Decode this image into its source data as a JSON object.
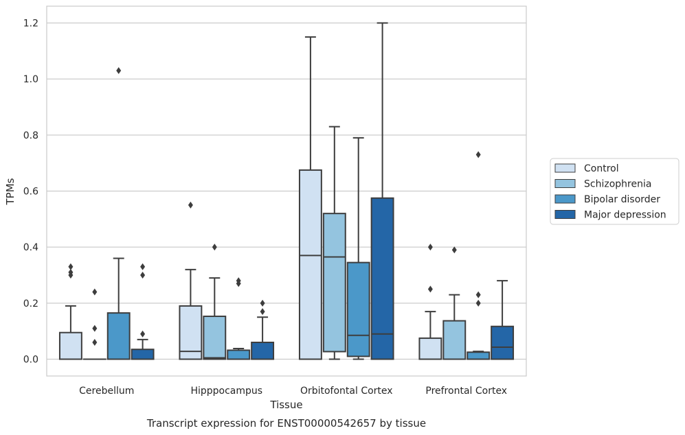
{
  "chart_data": {
    "type": "box",
    "xlabel": "Tissue",
    "ylabel": "TPMs",
    "caption": "Transcript expression for ENST00000542657 by tissue",
    "ylim": [
      -0.06,
      1.26
    ],
    "yticks": [
      0.0,
      0.2,
      0.4,
      0.6,
      0.8,
      1.0,
      1.2
    ],
    "ytick_labels": [
      "0.0",
      "0.2",
      "0.4",
      "0.6",
      "0.8",
      "1.0",
      "1.2"
    ],
    "grid": "horizontal",
    "legend_position": "right",
    "categories": [
      "Cerebellum",
      "Hipppocampus",
      "Orbitofontal Cortex",
      "Prefrontal Cortex"
    ],
    "series": [
      {
        "name": "Control",
        "color": "#d0e1f2",
        "boxes": [
          {
            "whisker_low": 0.0,
            "q1": 0.0,
            "median": 0.0,
            "q3": 0.095,
            "whisker_high": 0.19,
            "outliers": [
              0.33,
              0.31,
              0.3
            ]
          },
          {
            "whisker_low": 0.0,
            "q1": 0.0,
            "median": 0.028,
            "q3": 0.19,
            "whisker_high": 0.32,
            "outliers": [
              0.55
            ]
          },
          {
            "whisker_low": 0.0,
            "q1": 0.0,
            "median": 0.37,
            "q3": 0.675,
            "whisker_high": 1.15,
            "outliers": []
          },
          {
            "whisker_low": 0.0,
            "q1": 0.0,
            "median": 0.0,
            "q3": 0.075,
            "whisker_high": 0.17,
            "outliers": [
              0.4,
              0.25
            ]
          }
        ]
      },
      {
        "name": "Schizophrenia",
        "color": "#94c4df",
        "boxes": [
          {
            "whisker_low": 0.0,
            "q1": 0.0,
            "median": 0.0,
            "q3": 0.0,
            "whisker_high": 0.0,
            "outliers": [
              0.24,
              0.11,
              0.06
            ]
          },
          {
            "whisker_low": 0.0,
            "q1": 0.0,
            "median": 0.005,
            "q3": 0.153,
            "whisker_high": 0.29,
            "outliers": [
              0.4
            ]
          },
          {
            "whisker_low": 0.0,
            "q1": 0.027,
            "median": 0.365,
            "q3": 0.52,
            "whisker_high": 0.83,
            "outliers": []
          },
          {
            "whisker_low": 0.0,
            "q1": 0.0,
            "median": 0.0,
            "q3": 0.137,
            "whisker_high": 0.23,
            "outliers": [
              0.39
            ]
          }
        ]
      },
      {
        "name": "Bipolar disorder",
        "color": "#4b98c9",
        "boxes": [
          {
            "whisker_low": 0.0,
            "q1": 0.0,
            "median": 0.0,
            "q3": 0.165,
            "whisker_high": 0.36,
            "outliers": [
              1.03
            ]
          },
          {
            "whisker_low": 0.0,
            "q1": 0.0,
            "median": 0.0,
            "q3": 0.032,
            "whisker_high": 0.038,
            "outliers": [
              0.28,
              0.27
            ]
          },
          {
            "whisker_low": 0.0,
            "q1": 0.01,
            "median": 0.085,
            "q3": 0.345,
            "whisker_high": 0.79,
            "outliers": []
          },
          {
            "whisker_low": 0.0,
            "q1": 0.0,
            "median": 0.0,
            "q3": 0.025,
            "whisker_high": 0.028,
            "outliers": [
              0.73,
              0.23,
              0.2
            ]
          }
        ]
      },
      {
        "name": "Major depression",
        "color": "#2466a7",
        "boxes": [
          {
            "whisker_low": 0.0,
            "q1": 0.0,
            "median": 0.0,
            "q3": 0.035,
            "whisker_high": 0.07,
            "outliers": [
              0.33,
              0.3,
              0.09
            ]
          },
          {
            "whisker_low": 0.0,
            "q1": 0.0,
            "median": 0.0,
            "q3": 0.06,
            "whisker_high": 0.15,
            "outliers": [
              0.2,
              0.17
            ]
          },
          {
            "whisker_low": 0.0,
            "q1": 0.0,
            "median": 0.09,
            "q3": 0.575,
            "whisker_high": 1.2,
            "outliers": []
          },
          {
            "whisker_low": 0.0,
            "q1": 0.0,
            "median": 0.043,
            "q3": 0.117,
            "whisker_high": 0.28,
            "outliers": []
          }
        ]
      }
    ]
  }
}
